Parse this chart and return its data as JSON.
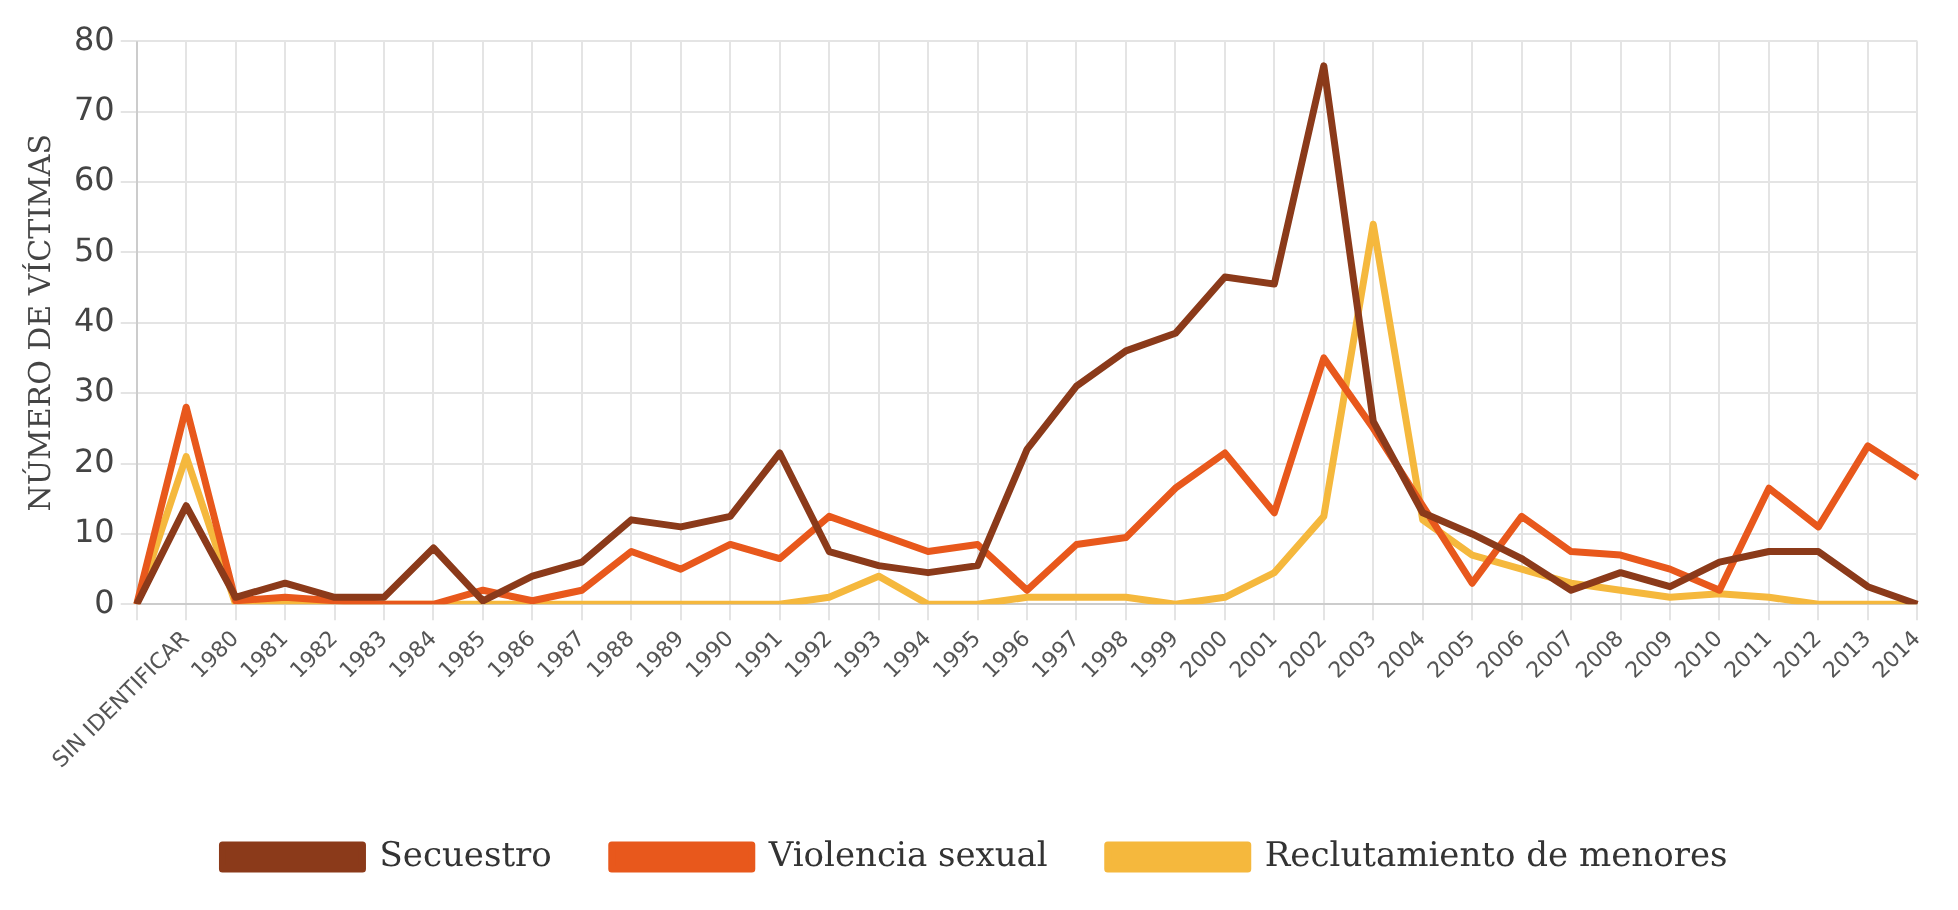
{
  "chart_data": {
    "type": "line",
    "ylabel": "NÚMERO DE VÍCTIMAS",
    "categories": [
      null,
      "SIN IDENTIFICAR",
      "1980",
      "1981",
      "1982",
      "1983",
      "1984",
      "1985",
      "1986",
      "1987",
      "1988",
      "1989",
      "1990",
      "1991",
      "1992",
      "1993",
      "1994",
      "1995",
      "1996",
      "1997",
      "1998",
      "1999",
      "2000",
      "2001",
      "2002",
      "2003",
      "2004",
      "2005",
      "2006",
      "2007",
      "2008",
      "2009",
      "2010",
      "2011",
      "2012",
      "2013",
      "2014"
    ],
    "series": [
      {
        "name": "Secuestro",
        "color": "#8b3a1a",
        "values": [
          0,
          14,
          1,
          3,
          1,
          1,
          8,
          0.5,
          4,
          6,
          12,
          11,
          12.5,
          21.5,
          7.5,
          5.5,
          4.5,
          5.5,
          22,
          31,
          36,
          38.5,
          46.5,
          45.5,
          76.5,
          26,
          13,
          10,
          6.5,
          2,
          4.5,
          2.5,
          6,
          7.5,
          7.5,
          2.5,
          0
        ]
      },
      {
        "name": "Violencia sexual",
        "color": "#e8581c",
        "values": [
          0,
          28,
          0.5,
          1,
          0.5,
          0,
          0,
          2,
          0.5,
          2,
          7.5,
          5,
          8.5,
          6.5,
          12.5,
          10,
          7.5,
          8.5,
          2,
          8.5,
          9.5,
          16.5,
          21.5,
          13,
          35,
          25,
          14,
          3,
          12.5,
          7.5,
          7,
          5,
          2,
          16.5,
          11,
          22.5,
          18
        ]
      },
      {
        "name": "Reclutamiento de menores",
        "color": "#f5b83d",
        "values": [
          0,
          21,
          0,
          0,
          0,
          0,
          0,
          0,
          0,
          0,
          0,
          0,
          0,
          0,
          1,
          4,
          0,
          0,
          1,
          1,
          1,
          0,
          1,
          4.5,
          12.5,
          54,
          12,
          7,
          5,
          3,
          2,
          1,
          1.5,
          1,
          0,
          0,
          0
        ]
      }
    ],
    "ylim": [
      0,
      80
    ],
    "yticks": [
      0,
      10,
      20,
      30,
      40,
      50,
      60,
      70,
      80
    ],
    "grid": true,
    "legend": "bottom",
    "marker": "none",
    "line_style": "solid"
  }
}
